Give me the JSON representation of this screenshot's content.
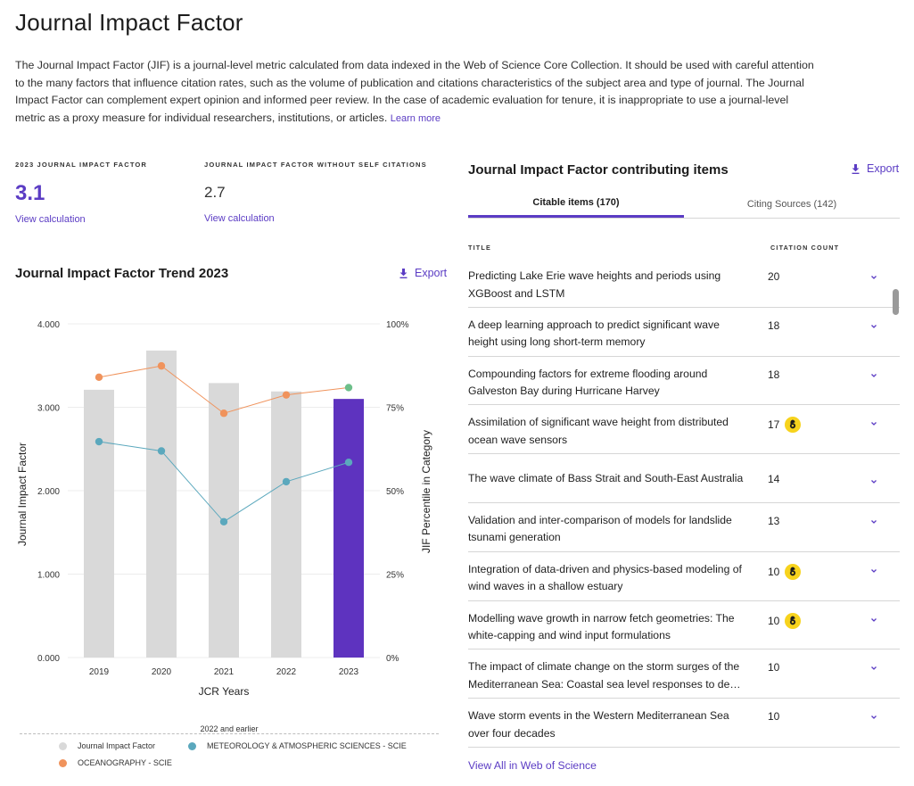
{
  "page": {
    "title": "Journal Impact Factor",
    "intro_text": "The Journal Impact Factor (JIF) is a journal-level metric calculated from data indexed in the Web of Science Core Collection. It should be used with careful attention to the many factors that influence citation rates, such as the volume of publication and citations characteristics of the subject area and type of journal. The Journal Impact Factor can complement expert opinion and informed peer review. In the case of academic evaluation for tenure, it is inappropriate to use a journal-level metric as a proxy measure for individual researchers, institutions, or articles.",
    "learn_more": "Learn more"
  },
  "metrics": {
    "jif_label": "2023 JOURNAL IMPACT FACTOR",
    "jif_value": "3.1",
    "jif_view": "View calculation",
    "noself_label": "JOURNAL IMPACT FACTOR WITHOUT SELF CITATIONS",
    "noself_value": "2.7",
    "noself_view": "View calculation"
  },
  "trend": {
    "title": "Journal Impact Factor Trend 2023",
    "export": "Export",
    "legend_title": "2022 and earlier",
    "legend": [
      {
        "label": "Journal Impact Factor",
        "color": "#d9d9d9"
      },
      {
        "label": "METEOROLOGY & ATMOSPHERIC SCIENCES - SCIE",
        "color": "#5ba8bd"
      },
      {
        "label": "OCEANOGRAPHY - SCIE",
        "color": "#f0935c"
      }
    ]
  },
  "chart_data": {
    "type": "bar",
    "categories": [
      "2019",
      "2020",
      "2021",
      "2022",
      "2023"
    ],
    "xlabel": "JCR Years",
    "ylabel": "Journal Impact Factor",
    "y2label": "JIF Percentile in Category",
    "ylim": [
      0,
      4
    ],
    "y2lim": [
      0,
      100
    ],
    "yticks": [
      "0.000",
      "1.000",
      "2.000",
      "3.000",
      "4.000"
    ],
    "y2ticks": [
      "0%",
      "25%",
      "50%",
      "75%",
      "100%"
    ],
    "series": [
      {
        "name": "Journal Impact Factor",
        "kind": "bar",
        "axis": "left",
        "values": [
          3.21,
          3.68,
          3.29,
          3.19,
          3.1
        ],
        "color": "#d9d9d9",
        "highlight_last": "#5e33bf"
      },
      {
        "name": "METEOROLOGY & ATMOSPHERIC SCIENCES - SCIE",
        "kind": "line",
        "axis": "right",
        "values": [
          64.7,
          61.9,
          40.7,
          52.7,
          58.5
        ],
        "color": "#5ba8bd"
      },
      {
        "name": "OCEANOGRAPHY - SCIE",
        "kind": "line",
        "axis": "right",
        "values": [
          84.0,
          87.4,
          73.2,
          78.7,
          80.9
        ],
        "color": "#f0935c",
        "last_point_color": "#6dbf8a"
      }
    ],
    "grid": true
  },
  "contrib": {
    "title": "Journal Impact Factor contributing items",
    "export": "Export",
    "tabs": [
      {
        "label": "Citable items (170)"
      },
      {
        "label": "Citing Sources (142)"
      }
    ],
    "col_title": "TITLE",
    "col_count": "CITATION COUNT",
    "items": [
      {
        "title": "Predicting Lake Erie wave heights and periods using XGBoost and LSTM",
        "count": "20",
        "oa": false
      },
      {
        "title": "A deep learning approach to predict significant wave height using long short-term memory",
        "count": "18",
        "oa": false
      },
      {
        "title": "Compounding factors for extreme flooding around Galveston Bay during Hurricane Harvey",
        "count": "18",
        "oa": false
      },
      {
        "title": "Assimilation of significant wave height from distributed ocean wave sensors",
        "count": "17",
        "oa": true
      },
      {
        "title": "The wave climate of Bass Strait and South-East Australia",
        "count": "14",
        "oa": false
      },
      {
        "title": "Validation and inter-comparison of models for landslide tsunami generation",
        "count": "13",
        "oa": false
      },
      {
        "title": "Integration of data-driven and physics-based modeling of wind waves in a shallow estuary",
        "count": "10",
        "oa": true
      },
      {
        "title": "Modelling wave growth in narrow fetch geometries: The white-capping and wind input formulations",
        "count": "10",
        "oa": true
      },
      {
        "title": "The impact of climate change on the storm surges of the Mediterranean Sea: Coastal sea level responses to deep ocean changes",
        "count": "10",
        "oa": false
      },
      {
        "title": "Wave storm events in the Western Mediterranean Sea over four decades",
        "count": "10",
        "oa": false
      }
    ],
    "view_all": "View All in Web of Science"
  }
}
